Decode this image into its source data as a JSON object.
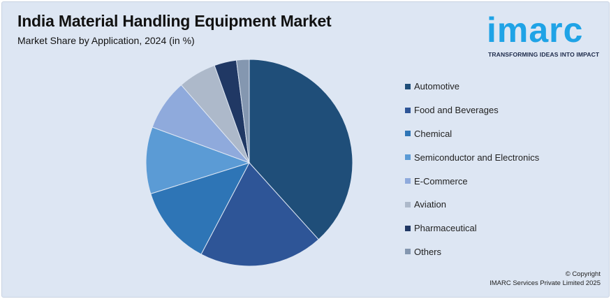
{
  "header": {
    "title": "India Material Handling Equipment Market",
    "subtitle": "Market Share by Application, 2024 (in %)"
  },
  "logo": {
    "wordmark": "imarc",
    "tagline": "TRANSFORMING IDEAS INTO IMPACT"
  },
  "chart_data": {
    "type": "pie",
    "title": "India Material Handling Equipment Market",
    "subtitle": "Market Share by Application, 2024 (in %)",
    "legend_position": "right",
    "series": [
      {
        "name": "Automotive",
        "value": 38.5,
        "color": "#1f4e79"
      },
      {
        "name": "Food and Beverages",
        "value": 19.5,
        "color": "#2e5597"
      },
      {
        "name": "Chemical",
        "value": 12.5,
        "color": "#2e75b6"
      },
      {
        "name": "Semiconductor and Electronics",
        "value": 10.5,
        "color": "#5b9bd5"
      },
      {
        "name": "E-Commerce",
        "value": 8.0,
        "color": "#8faadc"
      },
      {
        "name": "Aviation",
        "value": 6.0,
        "color": "#adb9ca"
      },
      {
        "name": "Pharmaceutical",
        "value": 3.5,
        "color": "#203864"
      },
      {
        "name": "Others",
        "value": 2.0,
        "color": "#8497b0"
      }
    ]
  },
  "footer": {
    "copyright_line1": "© Copyright",
    "copyright_line2": "IMARC Services Private Limited 2025"
  }
}
